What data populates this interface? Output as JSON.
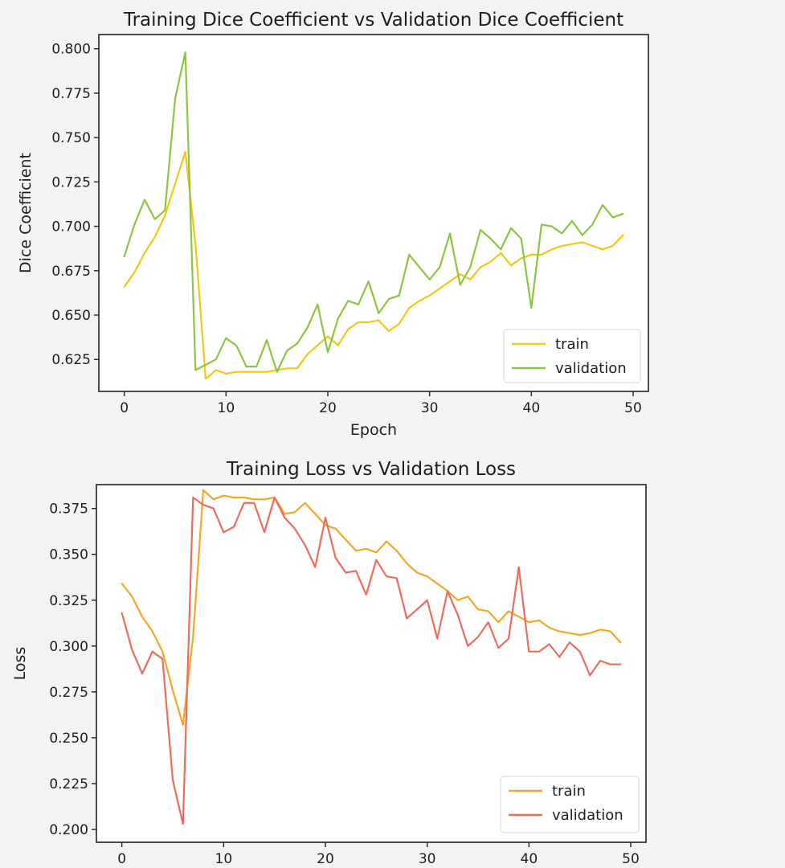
{
  "chart_data": [
    {
      "type": "line",
      "title": "Training Dice Coefficient vs Validation Dice Coefficient",
      "xlabel": "Epoch",
      "ylabel": "Dice Coefficient",
      "xlim": [
        -2.5,
        51.5
      ],
      "ylim": [
        0.607,
        0.808
      ],
      "xticks": [
        0,
        10,
        20,
        30,
        40,
        50
      ],
      "xtick_labels": [
        "0",
        "10",
        "20",
        "30",
        "40",
        "50"
      ],
      "yticks": [
        0.625,
        0.65,
        0.675,
        0.7,
        0.725,
        0.75,
        0.775,
        0.8
      ],
      "ytick_labels": [
        "0.625",
        "0.650",
        "0.675",
        "0.700",
        "0.725",
        "0.750",
        "0.775",
        "0.800"
      ],
      "grid": false,
      "legend": "lower-right",
      "series": [
        {
          "name": "train",
          "color": "#f5c518",
          "x": [
            0,
            1,
            2,
            3,
            4,
            5,
            6,
            7,
            8,
            9,
            10,
            11,
            12,
            13,
            14,
            15,
            16,
            17,
            18,
            19,
            20,
            21,
            22,
            23,
            24,
            25,
            26,
            27,
            28,
            29,
            30,
            31,
            32,
            33,
            34,
            35,
            36,
            37,
            38,
            39,
            40,
            41,
            42,
            43,
            44,
            45,
            46,
            47,
            48,
            49
          ],
          "values": [
            0.666,
            0.674,
            0.685,
            0.694,
            0.706,
            0.724,
            0.742,
            0.69,
            0.614,
            0.619,
            0.617,
            0.618,
            0.618,
            0.618,
            0.618,
            0.619,
            0.62,
            0.62,
            0.628,
            0.633,
            0.638,
            0.633,
            0.642,
            0.646,
            0.646,
            0.647,
            0.641,
            0.645,
            0.654,
            0.658,
            0.661,
            0.665,
            0.669,
            0.673,
            0.67,
            0.677,
            0.68,
            0.685,
            0.678,
            0.682,
            0.684,
            0.684,
            0.687,
            0.689,
            0.69,
            0.691,
            0.689,
            0.687,
            0.689,
            0.695
          ]
        },
        {
          "name": "validation",
          "color": "#8cc63f",
          "x": [
            0,
            1,
            2,
            3,
            4,
            5,
            6,
            7,
            8,
            9,
            10,
            11,
            12,
            13,
            14,
            15,
            16,
            17,
            18,
            19,
            20,
            21,
            22,
            23,
            24,
            25,
            26,
            27,
            28,
            29,
            30,
            31,
            32,
            33,
            34,
            35,
            36,
            37,
            38,
            39,
            40,
            41,
            42,
            43,
            44,
            45,
            46,
            47,
            48,
            49
          ],
          "values": [
            0.683,
            0.701,
            0.715,
            0.704,
            0.709,
            0.772,
            0.798,
            0.619,
            0.622,
            0.625,
            0.637,
            0.633,
            0.621,
            0.621,
            0.636,
            0.618,
            0.63,
            0.634,
            0.643,
            0.656,
            0.629,
            0.648,
            0.658,
            0.656,
            0.669,
            0.651,
            0.659,
            0.661,
            0.684,
            0.677,
            0.67,
            0.677,
            0.696,
            0.667,
            0.677,
            0.698,
            0.693,
            0.687,
            0.699,
            0.693,
            0.654,
            0.701,
            0.7,
            0.696,
            0.703,
            0.695,
            0.701,
            0.712,
            0.705,
            0.707
          ]
        }
      ]
    },
    {
      "type": "line",
      "title": "Training Loss vs Validation Loss",
      "xlabel": "",
      "ylabel": "Loss",
      "xlim": [
        -2.5,
        51.5
      ],
      "ylim": [
        0.193,
        0.388
      ],
      "xticks": [
        0,
        10,
        20,
        30,
        40,
        50
      ],
      "xtick_labels": [
        "0",
        "10",
        "20",
        "30",
        "40",
        "50"
      ],
      "yticks": [
        0.2,
        0.225,
        0.25,
        0.275,
        0.3,
        0.325,
        0.35,
        0.375
      ],
      "ytick_labels": [
        "0.200",
        "0.225",
        "0.250",
        "0.275",
        "0.300",
        "0.325",
        "0.350",
        "0.375"
      ],
      "grid": false,
      "legend": "lower-right",
      "series": [
        {
          "name": "train",
          "color": "#f5a623",
          "x": [
            0,
            1,
            2,
            3,
            4,
            5,
            6,
            7,
            8,
            9,
            10,
            11,
            12,
            13,
            14,
            15,
            16,
            17,
            18,
            19,
            20,
            21,
            22,
            23,
            24,
            25,
            26,
            27,
            28,
            29,
            30,
            31,
            32,
            33,
            34,
            35,
            36,
            37,
            38,
            39,
            40,
            41,
            42,
            43,
            44,
            45,
            46,
            47,
            48,
            49
          ],
          "values": [
            0.334,
            0.327,
            0.316,
            0.308,
            0.297,
            0.276,
            0.257,
            0.305,
            0.385,
            0.38,
            0.382,
            0.381,
            0.381,
            0.38,
            0.38,
            0.381,
            0.372,
            0.373,
            0.378,
            0.372,
            0.366,
            0.364,
            0.358,
            0.352,
            0.353,
            0.351,
            0.357,
            0.352,
            0.345,
            0.34,
            0.338,
            0.334,
            0.33,
            0.325,
            0.327,
            0.32,
            0.319,
            0.313,
            0.319,
            0.316,
            0.313,
            0.314,
            0.31,
            0.308,
            0.307,
            0.306,
            0.307,
            0.309,
            0.308,
            0.302
          ]
        },
        {
          "name": "validation",
          "color": "#ef6b5b",
          "x": [
            0,
            1,
            2,
            3,
            4,
            5,
            6,
            7,
            8,
            9,
            10,
            11,
            12,
            13,
            14,
            15,
            16,
            17,
            18,
            19,
            20,
            21,
            22,
            23,
            24,
            25,
            26,
            27,
            28,
            29,
            30,
            31,
            32,
            33,
            34,
            35,
            36,
            37,
            38,
            39,
            40,
            41,
            42,
            43,
            44,
            45,
            46,
            47,
            48,
            49
          ],
          "values": [
            0.318,
            0.298,
            0.285,
            0.297,
            0.293,
            0.227,
            0.203,
            0.381,
            0.377,
            0.375,
            0.362,
            0.365,
            0.378,
            0.378,
            0.362,
            0.381,
            0.37,
            0.364,
            0.355,
            0.343,
            0.37,
            0.348,
            0.34,
            0.341,
            0.328,
            0.347,
            0.338,
            0.337,
            0.315,
            0.32,
            0.325,
            0.304,
            0.33,
            0.317,
            0.3,
            0.305,
            0.313,
            0.299,
            0.304,
            0.343,
            0.297,
            0.297,
            0.301,
            0.294,
            0.302,
            0.297,
            0.284,
            0.292,
            0.29,
            0.29
          ]
        }
      ]
    }
  ]
}
